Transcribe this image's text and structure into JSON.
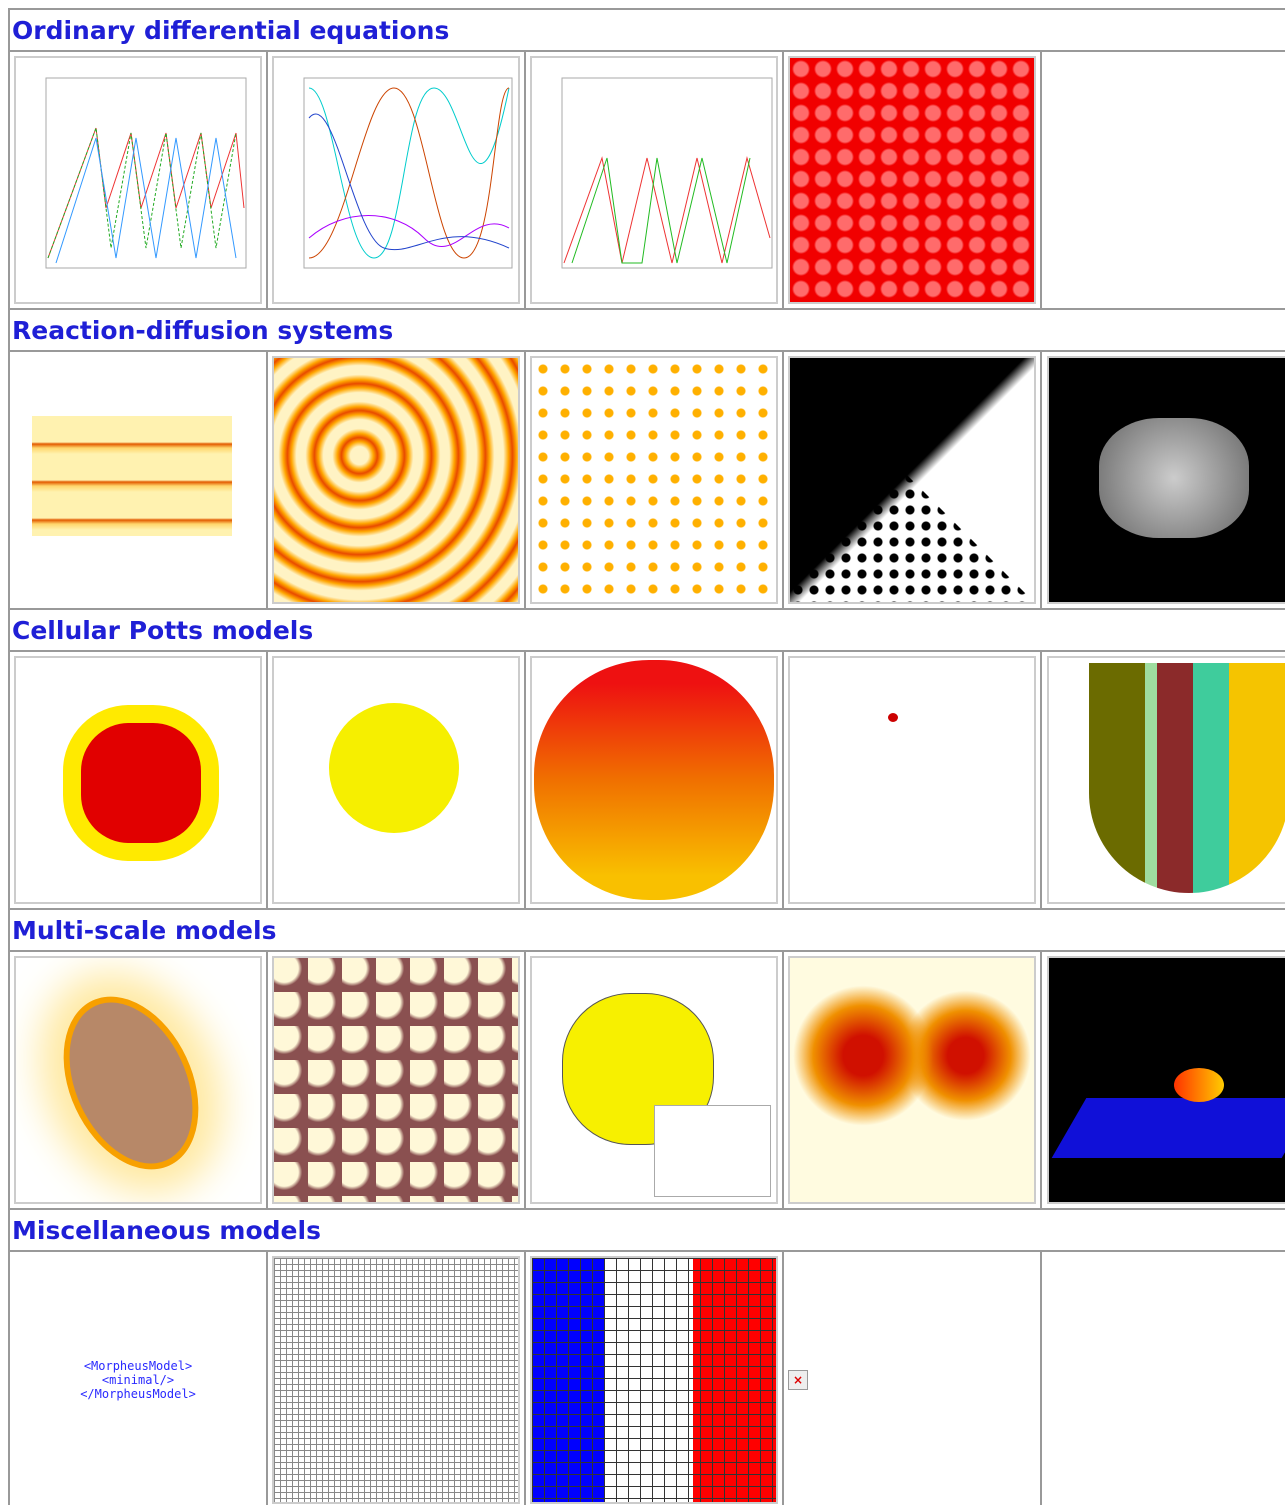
{
  "sections": [
    {
      "title": "Ordinary differential equations"
    },
    {
      "title": "Reaction-diffusion systems"
    },
    {
      "title": "Cellular Potts models"
    },
    {
      "title": "Multi-scale models"
    },
    {
      "title": "Miscellaneous models",
      "xml_lines": [
        "<MorpheusModel>",
        "<minimal/>",
        "</MorpheusModel>"
      ]
    }
  ]
}
